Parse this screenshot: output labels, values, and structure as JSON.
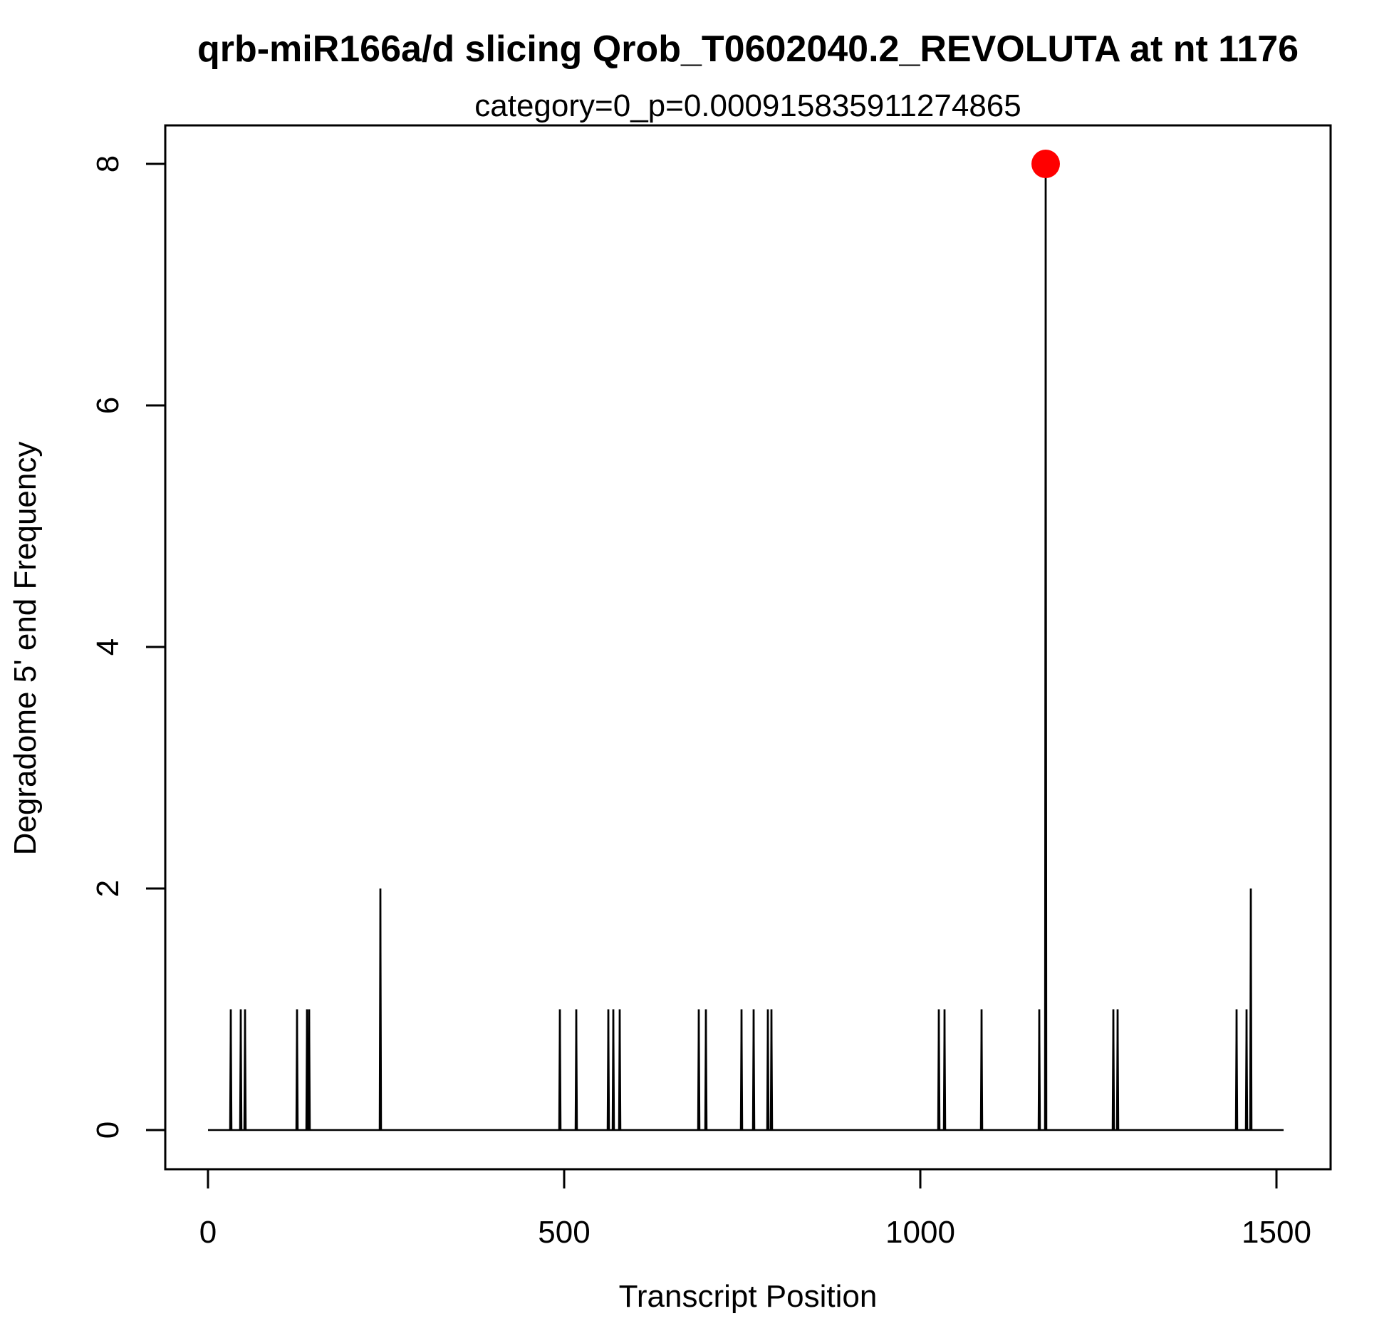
{
  "chart_data": {
    "type": "line",
    "title": "qrb-miR166a/d slicing Qrob_T0602040.2_REVOLUTA at nt 1176",
    "subtitle": "category=0_p=0.000915835911274865",
    "xlabel": "Transcript Position",
    "ylabel": "Degradome 5' end Frequency",
    "xlim": [
      0,
      1510
    ],
    "ylim": [
      0,
      8
    ],
    "x_ticks": [
      0,
      500,
      1000,
      1500
    ],
    "y_ticks": [
      0,
      2,
      4,
      6,
      8
    ],
    "grid": false,
    "series": [
      {
        "style": "spikes",
        "color": "#000000",
        "points": [
          {
            "x": 32,
            "y": 1
          },
          {
            "x": 46,
            "y": 1
          },
          {
            "x": 52,
            "y": 1
          },
          {
            "x": 125,
            "y": 1
          },
          {
            "x": 139,
            "y": 1
          },
          {
            "x": 142,
            "y": 1
          },
          {
            "x": 242,
            "y": 2
          },
          {
            "x": 494,
            "y": 1
          },
          {
            "x": 517,
            "y": 1
          },
          {
            "x": 562,
            "y": 1
          },
          {
            "x": 569,
            "y": 1
          },
          {
            "x": 578,
            "y": 1
          },
          {
            "x": 689,
            "y": 1
          },
          {
            "x": 699,
            "y": 1
          },
          {
            "x": 749,
            "y": 1
          },
          {
            "x": 766,
            "y": 1
          },
          {
            "x": 786,
            "y": 1
          },
          {
            "x": 791,
            "y": 1
          },
          {
            "x": 1026,
            "y": 1
          },
          {
            "x": 1034,
            "y": 1
          },
          {
            "x": 1086,
            "y": 1
          },
          {
            "x": 1167,
            "y": 1
          },
          {
            "x": 1176,
            "y": 8
          },
          {
            "x": 1271,
            "y": 1
          },
          {
            "x": 1277,
            "y": 1
          },
          {
            "x": 1444,
            "y": 1
          },
          {
            "x": 1458,
            "y": 1
          },
          {
            "x": 1464,
            "y": 2
          }
        ]
      }
    ],
    "highlight": {
      "x": 1176,
      "y": 8,
      "color": "#ff0000"
    }
  }
}
